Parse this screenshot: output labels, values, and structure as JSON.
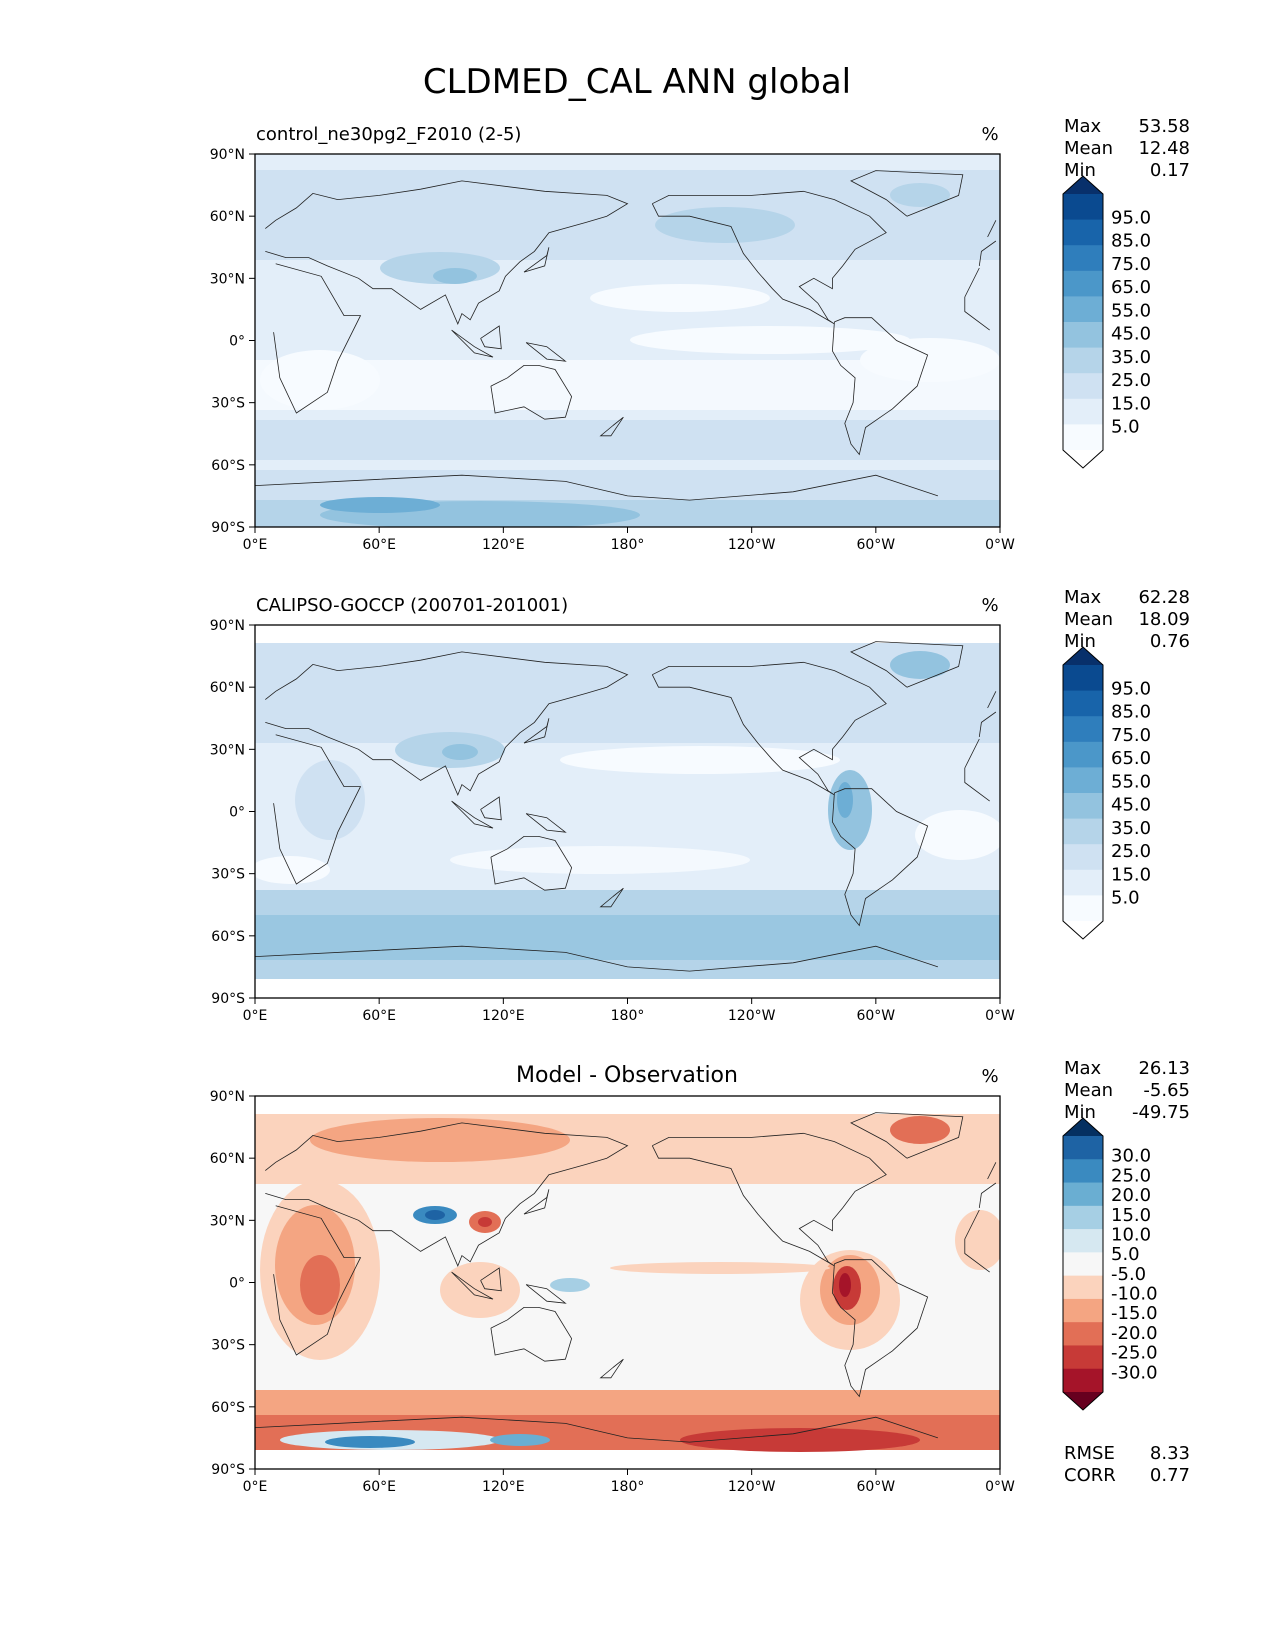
{
  "figure": {
    "title": "CLDMED_CAL ANN global"
  },
  "axes": {
    "lat_ticks": [
      "90°N",
      "60°N",
      "30°N",
      "0°",
      "30°S",
      "60°S",
      "90°S"
    ],
    "lon_ticks": [
      "0°E",
      "60°E",
      "120°E",
      "180°",
      "120°W",
      "60°W",
      "0°W"
    ]
  },
  "panels": [
    {
      "title_left": "control_ne30pg2_F2010 (2-5)",
      "title_center": "",
      "units": "%",
      "stats": [
        {
          "label": "Max",
          "value": "53.58"
        },
        {
          "label": "Mean",
          "value": "12.48"
        },
        {
          "label": "Min",
          "value": "0.17"
        }
      ],
      "colorbar": {
        "labels": [
          "95.0",
          "85.0",
          "75.0",
          "65.0",
          "55.0",
          "45.0",
          "35.0",
          "25.0",
          "15.0",
          "5.0"
        ],
        "colors": [
          "#f7fbff",
          "#e3eef9",
          "#cfe1f2",
          "#b5d4e9",
          "#93c3df",
          "#6daed5",
          "#4b97c9",
          "#2f7ebc",
          "#1864aa",
          "#0a4a90"
        ],
        "over_color": "#08306b",
        "under_color": "#ffffff"
      }
    },
    {
      "title_left": "CALIPSO-GOCCP (200701-201001)",
      "title_center": "",
      "units": "%",
      "stats": [
        {
          "label": "Max",
          "value": "62.28"
        },
        {
          "label": "Mean",
          "value": "18.09"
        },
        {
          "label": "Min",
          "value": "0.76"
        }
      ],
      "colorbar": {
        "labels": [
          "95.0",
          "85.0",
          "75.0",
          "65.0",
          "55.0",
          "45.0",
          "35.0",
          "25.0",
          "15.0",
          "5.0"
        ],
        "colors": [
          "#f7fbff",
          "#e3eef9",
          "#cfe1f2",
          "#b5d4e9",
          "#93c3df",
          "#6daed5",
          "#4b97c9",
          "#2f7ebc",
          "#1864aa",
          "#0a4a90"
        ],
        "over_color": "#08306b",
        "under_color": "#ffffff"
      }
    },
    {
      "title_left": "",
      "title_center": "Model - Observation",
      "units": "%",
      "stats": [
        {
          "label": "Max",
          "value": "26.13"
        },
        {
          "label": "Mean",
          "value": "-5.65"
        },
        {
          "label": "Min",
          "value": "-49.75"
        }
      ],
      "extra_stats": [
        {
          "label": "RMSE",
          "value": "8.33"
        },
        {
          "label": "CORR",
          "value": "0.77"
        }
      ],
      "colorbar": {
        "labels": [
          "30.0",
          "25.0",
          "20.0",
          "15.0",
          "10.0",
          "5.0",
          "-5.0",
          "-10.0",
          "-15.0",
          "-20.0",
          "-25.0",
          "-30.0"
        ],
        "colors": [
          "#a51429",
          "#c73a37",
          "#e26f56",
          "#f4a582",
          "#fbd3bd",
          "#f7f7f7",
          "#d6e8f1",
          "#a6cfe4",
          "#6aaed2",
          "#3a8ac0",
          "#1e63a4"
        ],
        "over_color": "#053061",
        "under_color": "#67001f"
      }
    }
  ],
  "chart_data": [
    {
      "type": "heatmap",
      "title": "control_ne30pg2_F2010 (2-5)",
      "units": "%",
      "xlim": [
        0,
        360
      ],
      "ylim": [
        -90,
        90
      ],
      "levels": [
        5,
        15,
        25,
        35,
        45,
        55,
        65,
        75,
        85,
        95
      ],
      "max": 53.58,
      "mean": 12.48,
      "min": 0.17
    },
    {
      "type": "heatmap",
      "title": "CALIPSO-GOCCP (200701-201001)",
      "units": "%",
      "xlim": [
        0,
        360
      ],
      "ylim": [
        -90,
        90
      ],
      "levels": [
        5,
        15,
        25,
        35,
        45,
        55,
        65,
        75,
        85,
        95
      ],
      "max": 62.28,
      "mean": 18.09,
      "min": 0.76
    },
    {
      "type": "heatmap",
      "title": "Model - Observation",
      "units": "%",
      "xlim": [
        0,
        360
      ],
      "ylim": [
        -90,
        90
      ],
      "levels": [
        -30,
        -25,
        -20,
        -15,
        -10,
        -5,
        5,
        10,
        15,
        20,
        25,
        30
      ],
      "max": 26.13,
      "mean": -5.65,
      "min": -49.75,
      "rmse": 8.33,
      "corr": 0.77
    }
  ]
}
